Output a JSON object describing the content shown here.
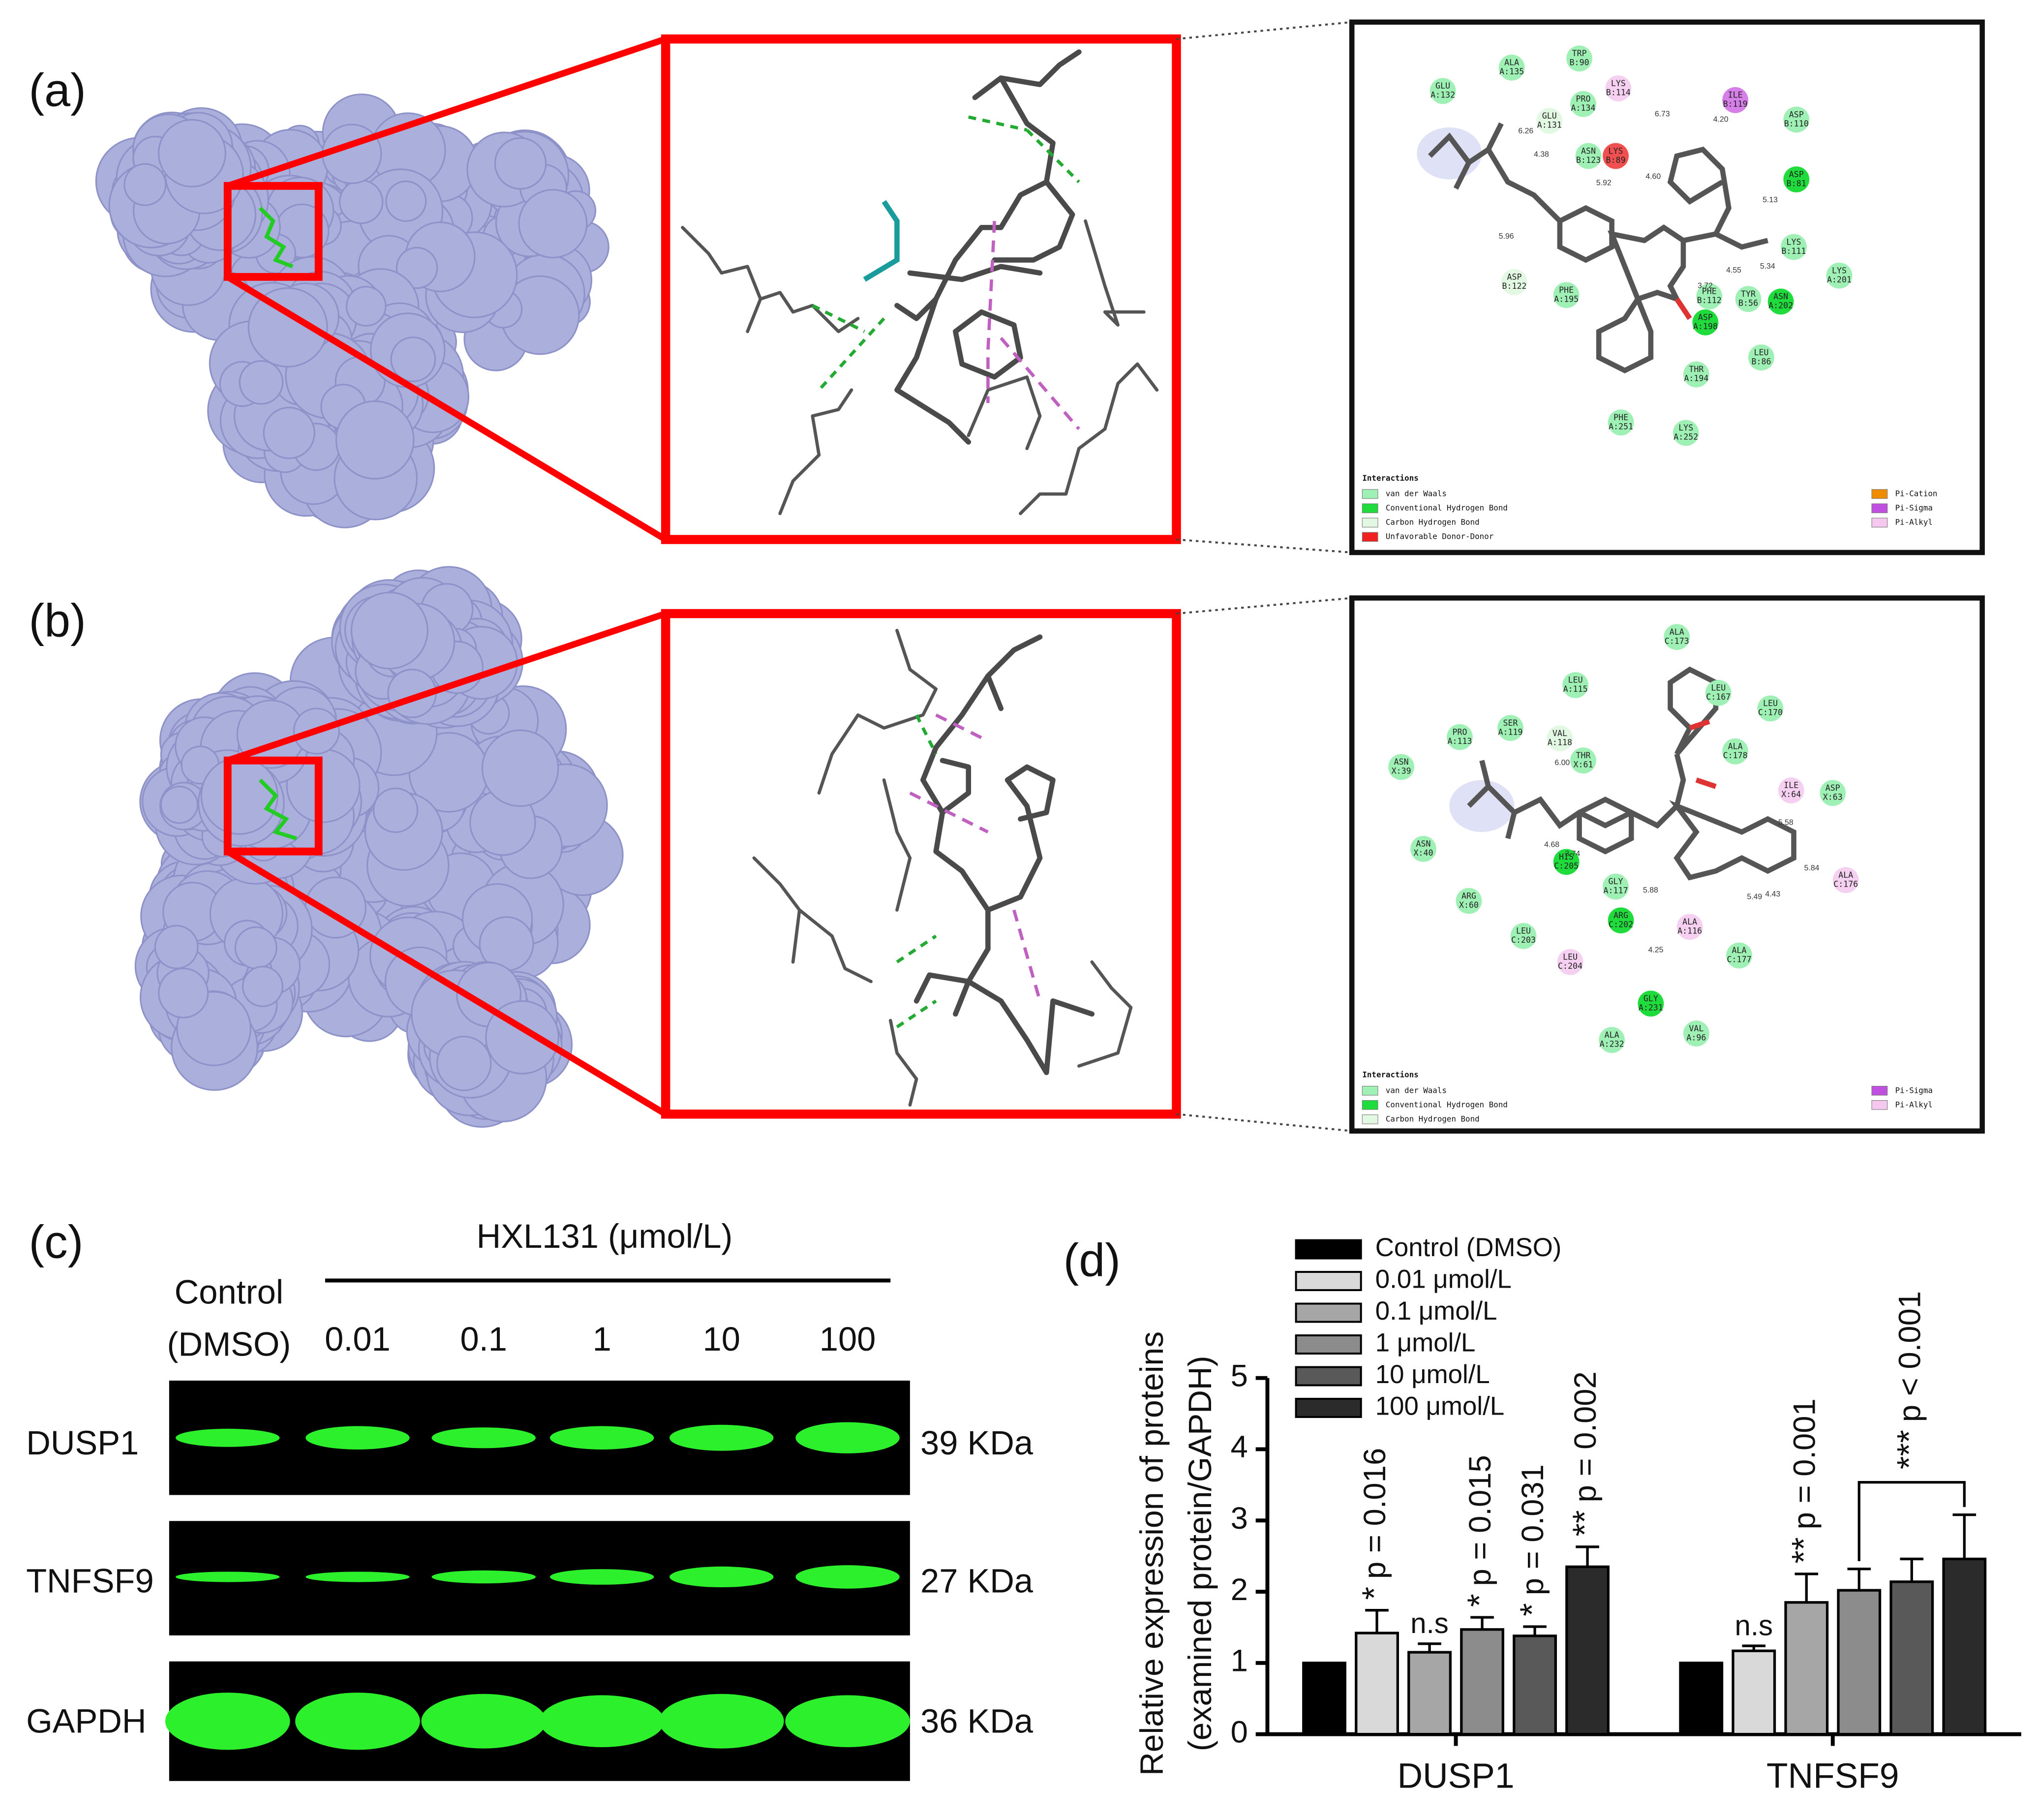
{
  "panels": [
    "(a)",
    "(b)",
    "(c)",
    "(d)"
  ],
  "interaction_a": {
    "residues": [
      {
        "name": "GLU",
        "chain": "A:132",
        "color": "#9ff0b4"
      },
      {
        "name": "ALA",
        "chain": "A:135",
        "color": "#9ff0b4"
      },
      {
        "name": "TRP",
        "chain": "B:90",
        "color": "#9ff0b4"
      },
      {
        "name": "LYS",
        "chain": "B:114",
        "color": "#f6d0f0"
      },
      {
        "name": "ILE",
        "chain": "B:119",
        "color": "#d67fe8"
      },
      {
        "name": "ASP",
        "chain": "B:110",
        "color": "#9ff0b4"
      },
      {
        "name": "PRO",
        "chain": "A:134",
        "color": "#9ff0b4"
      },
      {
        "name": "GLU",
        "chain": "A:131",
        "color": "#e2f8e2"
      },
      {
        "name": "ASN",
        "chain": "B:123",
        "color": "#9ff0b4"
      },
      {
        "name": "LYS",
        "chain": "B:89",
        "color": "#f05050"
      },
      {
        "name": "ASP",
        "chain": "B:81",
        "color": "#1fdc3c"
      },
      {
        "name": "LYS",
        "chain": "B:111",
        "color": "#9ff0b4"
      },
      {
        "name": "LYS",
        "chain": "A:201",
        "color": "#9ff0b4"
      },
      {
        "name": "ASN",
        "chain": "A:202",
        "color": "#1fdc3c"
      },
      {
        "name": "TYR",
        "chain": "B:56",
        "color": "#9ff0b4"
      },
      {
        "name": "PHE",
        "chain": "B:112",
        "color": "#9ff0b4"
      },
      {
        "name": "ASP",
        "chain": "A:198",
        "color": "#1fdc3c"
      },
      {
        "name": "ASP",
        "chain": "B:122",
        "color": "#e2f8e2"
      },
      {
        "name": "PHE",
        "chain": "A:195",
        "color": "#9ff0b4"
      },
      {
        "name": "LEU",
        "chain": "B:86",
        "color": "#9ff0b4"
      },
      {
        "name": "THR",
        "chain": "A:194",
        "color": "#9ff0b4"
      },
      {
        "name": "PHE",
        "chain": "A:251",
        "color": "#9ff0b4"
      },
      {
        "name": "LYS",
        "chain": "A:252",
        "color": "#9ff0b4"
      }
    ],
    "distances": [
      "6.26",
      "4.38",
      "6.73",
      "4.20",
      "4.60",
      "5.92",
      "5.13",
      "5.34",
      "4.55",
      "3.72",
      "5.96"
    ],
    "legend_title": "Interactions",
    "legend": [
      {
        "label": "van der Waals",
        "color": "#9ff0b4"
      },
      {
        "label": "Conventional Hydrogen Bond",
        "color": "#1fdc3c"
      },
      {
        "label": "Carbon Hydrogen Bond",
        "color": "#e2f8e2"
      },
      {
        "label": "Unfavorable Donor-Donor",
        "color": "#f02020"
      },
      {
        "label": "Pi-Cation",
        "color": "#f08c00"
      },
      {
        "label": "Pi-Sigma",
        "color": "#c050e0"
      },
      {
        "label": "Pi-Alkyl",
        "color": "#f6c8f0"
      }
    ]
  },
  "interaction_b": {
    "residues": [
      {
        "name": "ALA",
        "chain": "C:173",
        "color": "#9ff0b4"
      },
      {
        "name": "LEU",
        "chain": "A:115",
        "color": "#9ff0b4"
      },
      {
        "name": "LEU",
        "chain": "C:167",
        "color": "#9ff0b4"
      },
      {
        "name": "LEU",
        "chain": "C:170",
        "color": "#9ff0b4"
      },
      {
        "name": "PRO",
        "chain": "A:113",
        "color": "#9ff0b4"
      },
      {
        "name": "SER",
        "chain": "A:119",
        "color": "#9ff0b4"
      },
      {
        "name": "VAL",
        "chain": "A:118",
        "color": "#e2f8e2"
      },
      {
        "name": "THR",
        "chain": "X:61",
        "color": "#9ff0b4"
      },
      {
        "name": "ALA",
        "chain": "C:178",
        "color": "#9ff0b4"
      },
      {
        "name": "ASN",
        "chain": "X:39",
        "color": "#9ff0b4"
      },
      {
        "name": "ILE",
        "chain": "X:64",
        "color": "#f6d0f0"
      },
      {
        "name": "ASP",
        "chain": "X:63",
        "color": "#9ff0b4"
      },
      {
        "name": "ASN",
        "chain": "X:40",
        "color": "#9ff0b4"
      },
      {
        "name": "HIS",
        "chain": "C:205",
        "color": "#1fdc3c"
      },
      {
        "name": "GLY",
        "chain": "A:117",
        "color": "#9ff0b4"
      },
      {
        "name": "ALA",
        "chain": "C:176",
        "color": "#f6d0f0"
      },
      {
        "name": "ARG",
        "chain": "X:60",
        "color": "#9ff0b4"
      },
      {
        "name": "ARG",
        "chain": "C:202",
        "color": "#1fdc3c"
      },
      {
        "name": "ALA",
        "chain": "A:116",
        "color": "#f6d0f0"
      },
      {
        "name": "ALA",
        "chain": "C:177",
        "color": "#9ff0b4"
      },
      {
        "name": "LEU",
        "chain": "C:203",
        "color": "#9ff0b4"
      },
      {
        "name": "LEU",
        "chain": "C:204",
        "color": "#f6d0f0"
      },
      {
        "name": "GLY",
        "chain": "A:231",
        "color": "#1fdc3c"
      },
      {
        "name": "ALA",
        "chain": "A:232",
        "color": "#9ff0b4"
      },
      {
        "name": "VAL",
        "chain": "A:96",
        "color": "#9ff0b4"
      }
    ],
    "distances": [
      "6.00",
      "5.58",
      "4.68",
      "3.74",
      "5.88",
      "5.84",
      "5.49",
      "4.43",
      "4.25"
    ],
    "legend_title": "Interactions",
    "legend": [
      {
        "label": "van der Waals",
        "color": "#9ff0b4"
      },
      {
        "label": "Conventional Hydrogen Bond",
        "color": "#1fdc3c"
      },
      {
        "label": "Carbon Hydrogen Bond",
        "color": "#e2f8e2"
      },
      {
        "label": "Pi-Sigma",
        "color": "#c050e0"
      },
      {
        "label": "Pi-Alkyl",
        "color": "#f6c8f0"
      }
    ]
  },
  "blot": {
    "treatment": "HXL131 (μmol/L)",
    "control": [
      "Control",
      "(DMSO)"
    ],
    "doses": [
      "0.01",
      "0.1",
      "1",
      "10",
      "100"
    ],
    "proteins": [
      {
        "name": "DUSP1",
        "size": "39 KDa"
      },
      {
        "name": "TNFSF9",
        "size": "27 KDa"
      },
      {
        "name": "GAPDH",
        "size": "36 KDa"
      }
    ]
  },
  "chart_data": {
    "type": "bar",
    "ylabel": [
      "Relative expression of proteins",
      "(examined protein/GAPDH)"
    ],
    "categories": [
      "DUSP1",
      "TNFSF9"
    ],
    "ylim": [
      0,
      5
    ],
    "yticks": [
      0,
      1,
      2,
      3,
      4,
      5
    ],
    "series": [
      {
        "name": "Control (DMSO)",
        "color": "#000000",
        "values": [
          1,
          1
        ]
      },
      {
        "name": "0.01 μmol/L",
        "color": "#d9d9d9",
        "values": [
          1.42,
          1.17
        ],
        "errors": [
          0.32,
          0.07
        ],
        "stars": [
          "*",
          "n.s"
        ],
        "p_values": [
          "p = 0.016",
          null
        ]
      },
      {
        "name": "0.1 μmol/L",
        "color": "#a6a6a6",
        "values": [
          1.15,
          1.85
        ],
        "errors": [
          0.12,
          0.4
        ],
        "stars": [
          "n.s",
          "**"
        ],
        "p_values": [
          null,
          "p = 0.001"
        ]
      },
      {
        "name": "1 μmol/L",
        "color": "#8c8c8c",
        "values": [
          1.47,
          2.02
        ],
        "errors": [
          0.17,
          0.3
        ],
        "stars": [
          "*",
          null
        ],
        "p_values": [
          "p = 0.015",
          null
        ]
      },
      {
        "name": "10 μmol/L",
        "color": "#595959",
        "values": [
          1.38,
          2.14
        ],
        "errors": [
          0.13,
          0.32
        ],
        "stars": [
          "*",
          null
        ],
        "p_values": [
          "p = 0.031",
          null
        ]
      },
      {
        "name": "100 μmol/L",
        "color": "#2b2b2b",
        "values": [
          2.35,
          2.46
        ],
        "errors": [
          0.28,
          0.62
        ],
        "stars": [
          "**",
          null
        ],
        "p_values": [
          "p = 0.002",
          null
        ]
      }
    ],
    "bracket": {
      "stars": "***",
      "p": "p < 0.001"
    }
  }
}
